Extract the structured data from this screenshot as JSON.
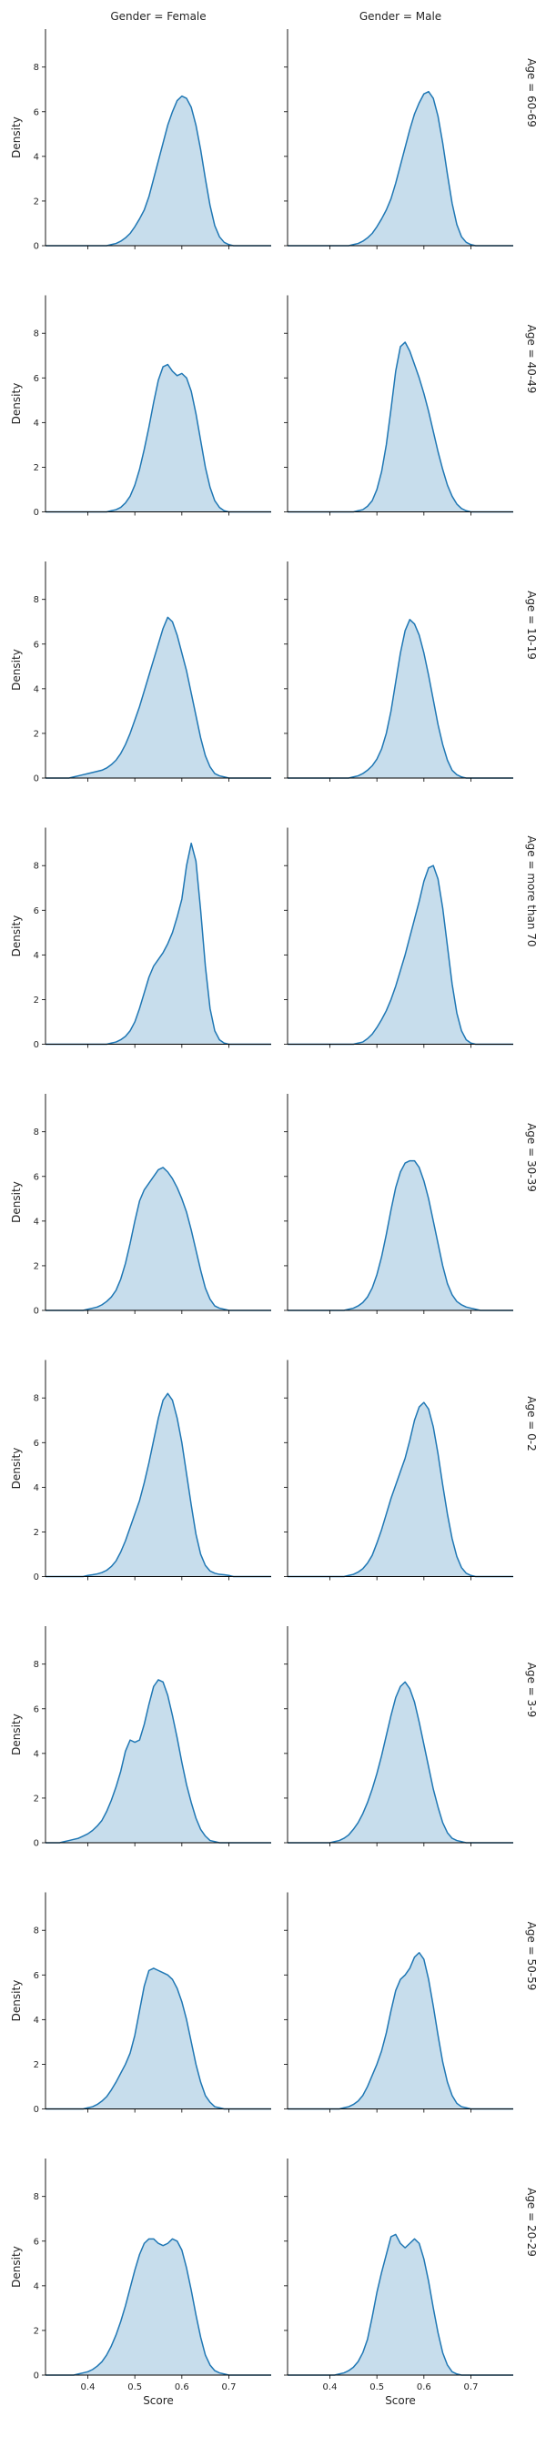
{
  "chart_data": {
    "type": "area",
    "kind": "kde-facet-grid",
    "col_titles": [
      "Gender = Female",
      "Gender = Male"
    ],
    "row_titles": [
      "Age = 60-69",
      "Age = 40-49",
      "Age = 10-19",
      "Age = more than 70",
      "Age = 30-39",
      "Age = 0-2",
      "Age = 3-9",
      "Age = 50-59",
      "Age = 20-29"
    ],
    "xlabel": "Score",
    "ylabel": "Density",
    "xlim": [
      0.31,
      0.79
    ],
    "ylim": [
      0,
      9.7
    ],
    "xticks": [
      0.4,
      0.5,
      0.6,
      0.7
    ],
    "yticks": [
      0,
      2,
      4,
      6,
      8
    ],
    "fill_color": "#1f77b4",
    "line_color": "#1f77b4",
    "x": [
      0.31,
      0.32,
      0.33,
      0.34,
      0.35,
      0.36,
      0.37,
      0.38,
      0.39,
      0.4,
      0.41,
      0.42,
      0.43,
      0.44,
      0.45,
      0.46,
      0.47,
      0.48,
      0.49,
      0.5,
      0.51,
      0.52,
      0.53,
      0.54,
      0.55,
      0.56,
      0.57,
      0.58,
      0.59,
      0.6,
      0.61,
      0.62,
      0.63,
      0.64,
      0.65,
      0.66,
      0.67,
      0.68,
      0.69,
      0.7,
      0.71,
      0.72,
      0.73,
      0.74,
      0.75,
      0.76,
      0.77,
      0.78,
      0.79
    ],
    "panels": [
      [
        {
          "values": [
            0,
            0,
            0,
            0,
            0,
            0,
            0,
            0,
            0,
            0,
            0,
            0,
            0,
            0,
            0.05,
            0.1,
            0.2,
            0.35,
            0.55,
            0.85,
            1.2,
            1.6,
            2.2,
            3.0,
            3.8,
            4.6,
            5.4,
            6.0,
            6.5,
            6.7,
            6.6,
            6.2,
            5.4,
            4.3,
            3.0,
            1.8,
            0.9,
            0.4,
            0.15,
            0.05,
            0,
            0,
            0,
            0,
            0,
            0,
            0,
            0,
            0
          ]
        },
        {
          "values": [
            0,
            0,
            0,
            0,
            0,
            0,
            0,
            0,
            0,
            0,
            0,
            0,
            0,
            0,
            0.05,
            0.1,
            0.2,
            0.35,
            0.55,
            0.85,
            1.2,
            1.6,
            2.1,
            2.8,
            3.6,
            4.4,
            5.2,
            5.9,
            6.4,
            6.8,
            6.9,
            6.6,
            5.8,
            4.6,
            3.2,
            1.9,
            0.95,
            0.4,
            0.15,
            0.05,
            0,
            0,
            0,
            0,
            0,
            0,
            0,
            0,
            0
          ]
        }
      ],
      [
        {
          "values": [
            0,
            0,
            0,
            0,
            0,
            0,
            0,
            0,
            0,
            0,
            0,
            0,
            0,
            0,
            0.05,
            0.1,
            0.2,
            0.4,
            0.7,
            1.2,
            1.9,
            2.8,
            3.8,
            4.9,
            5.9,
            6.5,
            6.6,
            6.3,
            6.1,
            6.2,
            6.0,
            5.4,
            4.4,
            3.2,
            2.0,
            1.1,
            0.5,
            0.2,
            0.05,
            0,
            0,
            0,
            0,
            0,
            0,
            0,
            0,
            0,
            0
          ]
        },
        {
          "values": [
            0,
            0,
            0,
            0,
            0,
            0,
            0,
            0,
            0,
            0,
            0,
            0,
            0,
            0,
            0,
            0.05,
            0.1,
            0.25,
            0.5,
            1.0,
            1.8,
            3.0,
            4.6,
            6.3,
            7.4,
            7.6,
            7.2,
            6.6,
            6.0,
            5.3,
            4.5,
            3.6,
            2.7,
            1.9,
            1.2,
            0.7,
            0.35,
            0.15,
            0.05,
            0,
            0,
            0,
            0,
            0,
            0,
            0,
            0,
            0,
            0
          ]
        }
      ],
      [
        {
          "values": [
            0,
            0,
            0,
            0,
            0,
            0,
            0.05,
            0.1,
            0.15,
            0.2,
            0.25,
            0.3,
            0.35,
            0.45,
            0.6,
            0.8,
            1.1,
            1.5,
            2.0,
            2.6,
            3.2,
            3.9,
            4.6,
            5.3,
            6.0,
            6.7,
            7.2,
            7.0,
            6.4,
            5.6,
            4.8,
            3.8,
            2.8,
            1.8,
            1.0,
            0.5,
            0.2,
            0.1,
            0.05,
            0,
            0,
            0,
            0,
            0,
            0,
            0,
            0,
            0,
            0
          ]
        },
        {
          "values": [
            0,
            0,
            0,
            0,
            0,
            0,
            0,
            0,
            0,
            0,
            0,
            0,
            0,
            0,
            0.05,
            0.1,
            0.2,
            0.35,
            0.55,
            0.85,
            1.3,
            2.0,
            3.0,
            4.3,
            5.6,
            6.6,
            7.1,
            6.9,
            6.4,
            5.6,
            4.6,
            3.5,
            2.4,
            1.5,
            0.8,
            0.35,
            0.15,
            0.05,
            0,
            0,
            0,
            0,
            0,
            0,
            0,
            0,
            0,
            0,
            0
          ]
        }
      ],
      [
        {
          "values": [
            0,
            0,
            0,
            0,
            0,
            0,
            0,
            0,
            0,
            0,
            0,
            0,
            0,
            0,
            0.05,
            0.1,
            0.2,
            0.35,
            0.6,
            1.0,
            1.6,
            2.3,
            3.0,
            3.5,
            3.8,
            4.1,
            4.5,
            5.0,
            5.7,
            6.5,
            8.0,
            9.0,
            8.2,
            6.0,
            3.5,
            1.6,
            0.6,
            0.2,
            0.05,
            0,
            0,
            0,
            0,
            0,
            0,
            0,
            0,
            0,
            0
          ]
        },
        {
          "values": [
            0,
            0,
            0,
            0,
            0,
            0,
            0,
            0,
            0,
            0,
            0,
            0,
            0,
            0,
            0,
            0.05,
            0.1,
            0.25,
            0.45,
            0.75,
            1.1,
            1.5,
            2.0,
            2.6,
            3.3,
            4.0,
            4.8,
            5.6,
            6.4,
            7.3,
            7.9,
            8.0,
            7.4,
            6.1,
            4.4,
            2.7,
            1.4,
            0.6,
            0.2,
            0.05,
            0,
            0,
            0,
            0,
            0,
            0,
            0,
            0,
            0
          ]
        }
      ],
      [
        {
          "values": [
            0,
            0,
            0,
            0,
            0,
            0,
            0,
            0,
            0,
            0.05,
            0.1,
            0.15,
            0.25,
            0.4,
            0.6,
            0.9,
            1.4,
            2.1,
            3.0,
            4.0,
            4.9,
            5.4,
            5.7,
            6.0,
            6.3,
            6.4,
            6.2,
            5.9,
            5.5,
            5.0,
            4.4,
            3.6,
            2.7,
            1.8,
            1.0,
            0.5,
            0.2,
            0.1,
            0.05,
            0,
            0,
            0,
            0,
            0,
            0,
            0,
            0,
            0,
            0
          ]
        },
        {
          "values": [
            0,
            0,
            0,
            0,
            0,
            0,
            0,
            0,
            0,
            0,
            0,
            0,
            0,
            0.05,
            0.1,
            0.2,
            0.35,
            0.6,
            1.0,
            1.6,
            2.4,
            3.4,
            4.5,
            5.5,
            6.2,
            6.6,
            6.7,
            6.7,
            6.4,
            5.8,
            5.0,
            4.0,
            3.0,
            2.0,
            1.2,
            0.7,
            0.4,
            0.25,
            0.15,
            0.1,
            0.05,
            0,
            0,
            0,
            0,
            0,
            0,
            0,
            0
          ]
        }
      ],
      [
        {
          "values": [
            0,
            0,
            0,
            0,
            0,
            0,
            0,
            0,
            0,
            0.05,
            0.08,
            0.12,
            0.18,
            0.28,
            0.45,
            0.7,
            1.1,
            1.6,
            2.2,
            2.8,
            3.4,
            4.2,
            5.1,
            6.1,
            7.1,
            7.9,
            8.2,
            7.9,
            7.1,
            6.0,
            4.6,
            3.2,
            1.9,
            1.0,
            0.5,
            0.25,
            0.15,
            0.1,
            0.08,
            0.05,
            0,
            0,
            0,
            0,
            0,
            0,
            0,
            0,
            0
          ]
        },
        {
          "values": [
            0,
            0,
            0,
            0,
            0,
            0,
            0,
            0,
            0,
            0,
            0,
            0,
            0,
            0.05,
            0.1,
            0.2,
            0.35,
            0.6,
            0.95,
            1.5,
            2.1,
            2.8,
            3.5,
            4.1,
            4.7,
            5.3,
            6.1,
            7.0,
            7.6,
            7.8,
            7.5,
            6.7,
            5.5,
            4.1,
            2.8,
            1.7,
            0.9,
            0.4,
            0.15,
            0.05,
            0,
            0,
            0,
            0,
            0,
            0,
            0,
            0,
            0
          ]
        }
      ],
      [
        {
          "values": [
            0,
            0,
            0,
            0,
            0.05,
            0.1,
            0.15,
            0.2,
            0.3,
            0.4,
            0.55,
            0.75,
            1.0,
            1.4,
            1.9,
            2.5,
            3.2,
            4.1,
            4.6,
            4.5,
            4.6,
            5.3,
            6.2,
            7.0,
            7.3,
            7.2,
            6.6,
            5.7,
            4.7,
            3.6,
            2.6,
            1.8,
            1.1,
            0.6,
            0.3,
            0.1,
            0.05,
            0,
            0,
            0,
            0,
            0,
            0,
            0,
            0,
            0,
            0,
            0,
            0
          ]
        },
        {
          "values": [
            0,
            0,
            0,
            0,
            0,
            0,
            0,
            0,
            0,
            0,
            0.05,
            0.1,
            0.2,
            0.35,
            0.6,
            0.9,
            1.3,
            1.8,
            2.4,
            3.1,
            3.9,
            4.8,
            5.7,
            6.5,
            7.0,
            7.2,
            6.9,
            6.3,
            5.4,
            4.4,
            3.4,
            2.4,
            1.6,
            0.9,
            0.45,
            0.2,
            0.1,
            0.05,
            0,
            0,
            0,
            0,
            0,
            0,
            0,
            0,
            0,
            0,
            0
          ]
        }
      ],
      [
        {
          "values": [
            0,
            0,
            0,
            0,
            0,
            0,
            0,
            0,
            0,
            0.05,
            0.1,
            0.2,
            0.35,
            0.55,
            0.85,
            1.2,
            1.6,
            2.0,
            2.5,
            3.3,
            4.4,
            5.5,
            6.2,
            6.3,
            6.2,
            6.1,
            6.0,
            5.8,
            5.4,
            4.8,
            4.0,
            3.0,
            2.0,
            1.2,
            0.6,
            0.3,
            0.1,
            0.05,
            0,
            0,
            0,
            0,
            0,
            0,
            0,
            0,
            0,
            0,
            0
          ]
        },
        {
          "values": [
            0,
            0,
            0,
            0,
            0,
            0,
            0,
            0,
            0,
            0,
            0,
            0,
            0.05,
            0.1,
            0.2,
            0.35,
            0.6,
            1.0,
            1.5,
            2.0,
            2.6,
            3.4,
            4.4,
            5.3,
            5.8,
            6.0,
            6.3,
            6.8,
            7.0,
            6.7,
            5.8,
            4.6,
            3.3,
            2.1,
            1.2,
            0.6,
            0.25,
            0.1,
            0.05,
            0,
            0,
            0,
            0,
            0,
            0,
            0,
            0,
            0,
            0
          ]
        }
      ],
      [
        {
          "values": [
            0,
            0,
            0,
            0,
            0,
            0,
            0,
            0.05,
            0.1,
            0.15,
            0.25,
            0.4,
            0.6,
            0.9,
            1.3,
            1.8,
            2.4,
            3.1,
            3.9,
            4.7,
            5.4,
            5.9,
            6.1,
            6.1,
            5.9,
            5.8,
            5.9,
            6.1,
            6.0,
            5.6,
            4.8,
            3.8,
            2.7,
            1.7,
            0.9,
            0.45,
            0.2,
            0.1,
            0.05,
            0,
            0,
            0,
            0,
            0,
            0,
            0,
            0,
            0,
            0
          ]
        },
        {
          "values": [
            0,
            0,
            0,
            0,
            0,
            0,
            0,
            0,
            0,
            0,
            0,
            0.05,
            0.1,
            0.2,
            0.35,
            0.6,
            1.0,
            1.6,
            2.6,
            3.7,
            4.6,
            5.4,
            6.2,
            6.3,
            5.9,
            5.7,
            5.9,
            6.1,
            5.9,
            5.2,
            4.2,
            3.0,
            1.9,
            1.0,
            0.45,
            0.15,
            0.05,
            0,
            0,
            0,
            0,
            0,
            0,
            0,
            0,
            0,
            0,
            0,
            0
          ]
        }
      ]
    ]
  }
}
